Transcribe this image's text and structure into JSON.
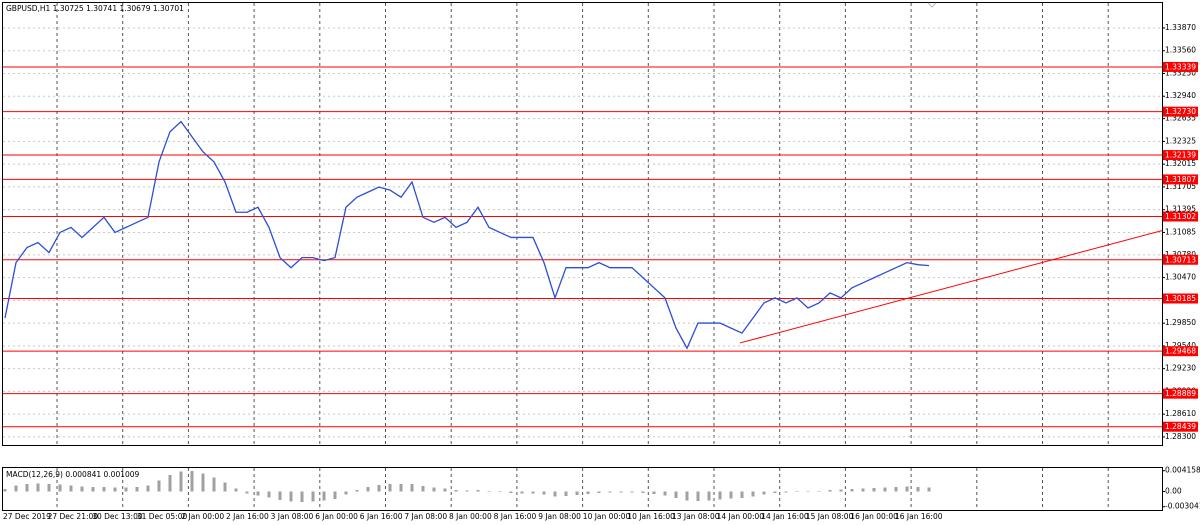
{
  "chart_data": {
    "type": "line",
    "title": "GBPUSD,H1  1.30725 1.30741 1.30679 1.30701",
    "ylim": [
      1.2819,
      1.3421
    ],
    "yticks": [
      {
        "value": 1.3387,
        "label": "1.33870"
      },
      {
        "value": 1.3356,
        "label": "1.33560"
      },
      {
        "value": 1.3325,
        "label": "1.33250"
      },
      {
        "value": 1.3294,
        "label": "1.32940"
      },
      1.32635,
      1.32325,
      1.32015,
      1.31705,
      1.31395,
      1.31085,
      {
        "value": 1.3078,
        "label": "1.30780"
      },
      {
        "value": 1.3047,
        "label": "1.30470"
      },
      {
        "value": 1.3016,
        "label": "1.30160"
      },
      {
        "value": 1.2985,
        "label": "1.29850"
      },
      {
        "value": 1.2954,
        "label": "1.29540"
      },
      {
        "value": 1.2923,
        "label": "1.29230"
      },
      {
        "value": 1.2892,
        "label": "1.28920"
      },
      {
        "value": 1.2861,
        "label": "1.28610"
      },
      {
        "value": 1.283,
        "label": "1.28300"
      }
    ],
    "grid": true,
    "levels": [
      1.33339,
      {
        "value": 1.3273,
        "label": "1.32730"
      },
      1.32139,
      1.31807,
      1.31302,
      1.30713,
      1.30185,
      1.29468,
      1.28889,
      1.28439
    ],
    "level_color": "#ff0000",
    "time_labels": [
      "27 Dec 2019",
      "27 Dec 21:00",
      "30 Dec 13:00",
      "31 Dec 05:00",
      "2 Jan 00:00",
      "2 Jan 16:00",
      "3 Jan 08:00",
      "6 Jan 00:00",
      "6 Jan 16:00",
      "7 Jan 08:00",
      "8 Jan 00:00",
      "8 Jan 16:00",
      "9 Jan 08:00",
      "10 Jan 00:00",
      "10 Jan 16:00",
      "13 Jan 08:00",
      "14 Jan 00:00",
      "14 Jan 16:00",
      "15 Jan 08:00",
      "16 Jan 00:00",
      "16 Jan 16:00"
    ],
    "series": [
      {
        "name": "GBPUSD",
        "color": "#2a4fd6",
        "values": [
          1.29919,
          1.30674,
          1.3088,
          1.30948,
          1.30811,
          1.31085,
          1.31154,
          1.31017,
          1.31154,
          1.31291,
          1.31085,
          1.31154,
          1.31223,
          1.31291,
          1.32046,
          1.32457,
          1.32594,
          1.32389,
          1.32183,
          1.32046,
          1.31771,
          1.3136,
          1.3136,
          1.31428,
          1.31154,
          1.30742,
          1.30605,
          1.30742,
          1.30742,
          1.30701,
          1.30742,
          1.31428,
          1.31565,
          1.31634,
          1.31703,
          1.31662,
          1.31565,
          1.31771,
          1.31291,
          1.31223,
          1.31291,
          1.31154,
          1.31223,
          1.31428,
          1.31154,
          1.31085,
          1.31017,
          1.31017,
          1.31017,
          1.30674,
          1.30194,
          1.30605,
          1.30605,
          1.30605,
          1.30674,
          1.30605,
          1.30605,
          1.30605,
          1.30468,
          1.30331,
          1.30194,
          1.29782,
          1.29508,
          1.29851,
          1.29851,
          1.29851,
          1.29782,
          1.29714,
          1.29919,
          1.30125,
          1.30194,
          1.30125,
          1.30194,
          1.30057,
          1.30125,
          1.30262,
          1.30194,
          1.30331,
          1.30399,
          1.30468,
          1.30537,
          1.30605,
          1.30674,
          1.30646,
          1.30633
        ]
      }
    ],
    "trendline": {
      "color": "#ff0000",
      "values": [
        1.2958,
        1.3111
      ]
    },
    "macd": {
      "label": "MACD(12,26,9) 0.000841 0.001009",
      "color": "#a0a0a0",
      "ylim": [
        -0.0035,
        0.0045
      ],
      "yticks": [
        0.004158,
        {
          "value": 0,
          "label": "0.00"
        },
        -0.003041
      ],
      "values": [
        0.0005,
        0.0012,
        0.0015,
        0.0016,
        0.0015,
        0.0014,
        0.0012,
        0.001,
        0.0009,
        0.0009,
        0.0008,
        0.0008,
        0.0009,
        0.0012,
        0.0022,
        0.0033,
        0.004,
        0.0041,
        0.0036,
        0.0028,
        0.0018,
        0.0006,
        -0.0004,
        -0.0008,
        -0.0012,
        -0.0017,
        -0.002,
        -0.0021,
        -0.002,
        -0.0018,
        -0.0015,
        -0.0006,
        0.0003,
        0.0009,
        0.0013,
        0.0015,
        0.0015,
        0.0015,
        0.0011,
        0.0008,
        0.0006,
        0.0003,
        0.0002,
        0.0003,
        0.0001,
        -0.0001,
        -0.0003,
        -0.0004,
        -0.0004,
        -0.0006,
        -0.001,
        -0.0009,
        -0.0007,
        -0.0005,
        -0.0003,
        -0.0002,
        -0.0002,
        -0.0002,
        -0.0003,
        -0.0005,
        -0.0008,
        -0.0013,
        -0.0018,
        -0.0019,
        -0.0018,
        -0.0016,
        -0.0014,
        -0.0013,
        -0.001,
        -0.0006,
        -0.0003,
        -0.0002,
        0,
        0,
        0.0001,
        0.0003,
        0.0004,
        0.0005,
        0.0006,
        0.0007,
        0.0008,
        0.0009,
        0.001,
        0.0009,
        0.0008
      ]
    }
  }
}
